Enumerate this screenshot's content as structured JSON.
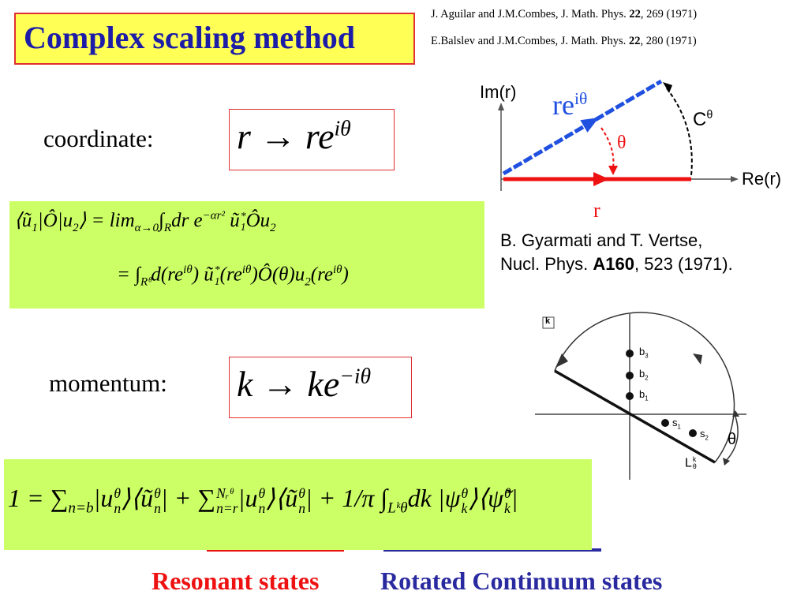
{
  "header": {
    "title": "Complex scaling method",
    "references": [
      {
        "text": "J. Aguilar and J.M.Combes, J. Math. Phys. ",
        "volume": "22",
        "pages": ", 269 (1971)"
      },
      {
        "text": "E.Balslev and J.M.Combes, J. Math. Phys. ",
        "volume": "22",
        "pages": ", 280 (1971)"
      }
    ]
  },
  "coordinate": {
    "label": "coordinate:",
    "formula": [
      {
        "t": "r → re",
        "sup": "iθ"
      }
    ]
  },
  "matrix_element": {
    "lines": [
      [
        {
          "t": "⟨ũ",
          "sub": "1"
        },
        {
          "t": "|Ô|u",
          "sub": "2"
        },
        {
          "t": "⟩ = lim",
          "sub": "α→0"
        },
        {
          "t": "∫",
          "sub": "R"
        },
        {
          "t": "dr e",
          "sup": "−αr²"
        },
        {
          "t": " ũ",
          "sub": "1",
          "sup": "*"
        },
        {
          "t": "Ôu",
          "sub": "2"
        }
      ],
      [
        {
          "t": "= ∫",
          "sub": "Rᶿ"
        },
        {
          "t": "d(re",
          "sup": "iθ"
        },
        {
          "t": ") ũ",
          "sub": "1",
          "sup": "*"
        },
        {
          "t": "(re",
          "sup": "iθ"
        },
        {
          "t": ")Ô(θ)u",
          "sub": "2"
        },
        {
          "t": "(re",
          "sup": "iθ"
        },
        {
          "t": ")"
        }
      ]
    ]
  },
  "momentum": {
    "label": "momentum:",
    "formula": [
      {
        "t": "k → ke",
        "sup": "−iθ"
      }
    ]
  },
  "rotation_diagram": {
    "y_axis": "Im(r)",
    "x_axis": "Re(r)",
    "rotated": [
      {
        "t": "re",
        "sup": "iθ"
      }
    ],
    "contour": [
      {
        "t": "C",
        "sup": "θ"
      }
    ],
    "angle": "θ",
    "radial": "r"
  },
  "reference": {
    "authors": "B. Gyarmati and T. Vertse,",
    "journal": "Nucl. Phys. ",
    "volume": "A160",
    "pages": ", 523 (1971)."
  },
  "k_plane": {
    "axis": "k",
    "bound_states": [
      [
        {
          "t": "b",
          "sub": "3"
        }
      ],
      [
        {
          "t": "b",
          "sub": "2"
        }
      ],
      [
        {
          "t": "b",
          "sub": "1"
        }
      ]
    ],
    "resonances": [
      [
        {
          "t": "s",
          "sub": "1"
        }
      ],
      [
        {
          "t": "s",
          "sub": "2"
        }
      ]
    ],
    "angle": "θ",
    "contour": [
      {
        "t": "L",
        "sub": "θ",
        "sup": "k"
      }
    ]
  },
  "completeness": {
    "formula": [
      {
        "t": "1 = ∑",
        "sub": "n=b"
      },
      {
        "t": "|u",
        "sub": "n",
        "sup": "θ"
      },
      {
        "t": "⟩⟨ũ",
        "sub": "n",
        "sup": "θ"
      },
      {
        "t": "| + ∑",
        "sub": "n=r",
        "sup": "Nᵣᶿ"
      },
      {
        "t": "|u",
        "sub": "n",
        "sup": "θ"
      },
      {
        "t": "⟩⟨ũ",
        "sub": "n",
        "sup": "θ"
      },
      {
        "t": "| + 1/π ∫",
        "sub": "Lᵏθ"
      },
      {
        "t": "dk |ψ",
        "sub": "k",
        "sup": "θ"
      },
      {
        "t": "⟩⟨ψ̃",
        "sub": "k",
        "sup": "θ"
      },
      {
        "t": "|"
      }
    ]
  },
  "labels": {
    "resonant": "Resonant states",
    "continuum": "Rotated Continuum states"
  }
}
